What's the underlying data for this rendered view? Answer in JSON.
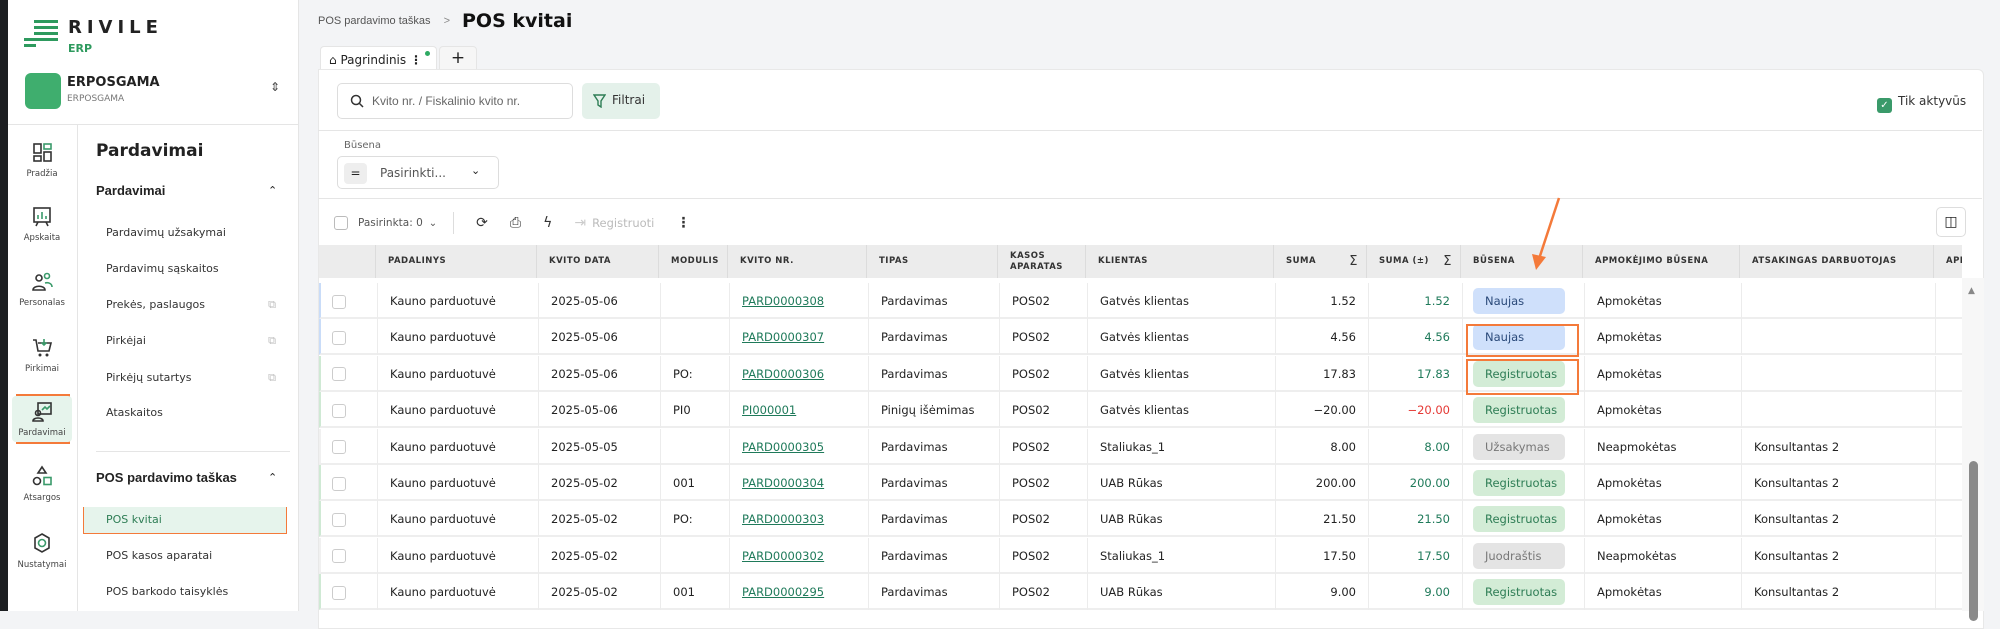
{
  "app": {
    "logo": "RIVILE",
    "logo_sub": "ERP",
    "company_name": "ERPOSGAMA",
    "company_sub": "ERPOSGAMA"
  },
  "rail": [
    {
      "label": "Pradžia",
      "icon": "dashboard-icon"
    },
    {
      "label": "Apskaita",
      "icon": "chart-board-icon"
    },
    {
      "label": "Personalas",
      "icon": "people-icon"
    },
    {
      "label": "Pirkimai",
      "icon": "cart-icon"
    },
    {
      "label": "Pardavimai",
      "icon": "sales-icon",
      "active": true
    },
    {
      "label": "Atsargos",
      "icon": "shapes-icon"
    },
    {
      "label": "Nustatymai",
      "icon": "gear-icon"
    }
  ],
  "panel": {
    "title": "Pardavimai",
    "sections": [
      {
        "title": "Pardavimai",
        "items": [
          {
            "label": "Pardavimų užsakymai"
          },
          {
            "label": "Pardavimų sąskaitos"
          },
          {
            "label": "Prekės, paslaugos",
            "external": true
          },
          {
            "label": "Pirkėjai",
            "external": true
          },
          {
            "label": "Pirkėjų sutartys",
            "external": true
          },
          {
            "label": "Ataskaitos"
          }
        ]
      },
      {
        "title": "POS pardavimo taškas",
        "items": [
          {
            "label": "POS kvitai",
            "active": true
          },
          {
            "label": "POS kasos aparatai"
          },
          {
            "label": "POS barkodo taisyklės"
          }
        ]
      }
    ]
  },
  "header": {
    "breadcrumb": "POS pardavimo taškas",
    "separator": ">",
    "title": "POS kvitai"
  },
  "tabs": {
    "home": "Pagrindinis",
    "add": "+"
  },
  "filters": {
    "search_placeholder": "Kvito nr. / Fiskalinio kvito nr.",
    "filter_button": "Filtrai",
    "only_active": "Tik aktyvūs",
    "only_active_checked": true,
    "status_label": "Būsena",
    "status_value": "Pasirinkti..."
  },
  "toolbar": {
    "selected": "Pasirinkta: 0",
    "register": "Registruoti"
  },
  "table": {
    "columns": [
      "",
      "PADALINYS",
      "KVITO DATA",
      "MODULIS",
      "KVITO NR.",
      "TIPAS",
      "KASOS APARATAS",
      "KLIENTAS",
      "SUMA",
      "SUMA (±)",
      "BŪSENA",
      "APMOKĖJIMO BŪSENA",
      "ATSAKINGAS DARBUOTOJAS",
      "APMOKĖJIMO"
    ],
    "rows": [
      [
        "Kauno parduotuvė",
        "2025-05-06",
        "",
        "PARD0000308",
        "Pardavimas",
        "POS02",
        "Gatvės klientas",
        "1.52",
        "1.52",
        "Naujas",
        "Apmokėtas",
        ""
      ],
      [
        "Kauno parduotuvė",
        "2025-05-06",
        "",
        "PARD0000307",
        "Pardavimas",
        "POS02",
        "Gatvės klientas",
        "4.56",
        "4.56",
        "Naujas",
        "Apmokėtas",
        ""
      ],
      [
        "Kauno parduotuvė",
        "2025-05-06",
        "PO:",
        "PARD0000306",
        "Pardavimas",
        "POS02",
        "Gatvės klientas",
        "17.83",
        "17.83",
        "Registruotas",
        "Apmokėtas",
        ""
      ],
      [
        "Kauno parduotuvė",
        "2025-05-06",
        "PI0",
        "PI000001",
        "Pinigų išėmimas",
        "POS02",
        "Gatvės klientas",
        "−20.00",
        "−20.00",
        "Registruotas",
        "Apmokėtas",
        ""
      ],
      [
        "Kauno parduotuvė",
        "2025-05-05",
        "",
        "PARD0000305",
        "Pardavimas",
        "POS02",
        "Staliukas_1",
        "8.00",
        "8.00",
        "Užsakymas",
        "Neapmokėtas",
        "Konsultantas 2"
      ],
      [
        "Kauno parduotuvė",
        "2025-05-02",
        "001",
        "PARD0000304",
        "Pardavimas",
        "POS02",
        "UAB Rūkas",
        "200.00",
        "200.00",
        "Registruotas",
        "Apmokėtas",
        "Konsultantas 2"
      ],
      [
        "Kauno parduotuvė",
        "2025-05-02",
        "PO:",
        "PARD0000303",
        "Pardavimas",
        "POS02",
        "UAB Rūkas",
        "21.50",
        "21.50",
        "Registruotas",
        "Apmokėtas",
        "Konsultantas 2"
      ],
      [
        "Kauno parduotuvė",
        "2025-05-02",
        "",
        "PARD0000302",
        "Pardavimas",
        "POS02",
        "Staliukas_1",
        "17.50",
        "17.50",
        "Juodraštis",
        "Neapmokėtas",
        "Konsultantas 2"
      ],
      [
        "Kauno parduotuvė",
        "2025-05-02",
        "001",
        "PARD0000295",
        "Pardavimas",
        "POS02",
        "UAB Rūkas",
        "9.00",
        "9.00",
        "Registruotas",
        "Apmokėtas",
        "Konsultantas 2"
      ]
    ]
  },
  "colors": {
    "accent": "#2e9a5e",
    "link": "#1f7a5a",
    "negative": "#e53935",
    "annotation": "#f47a3a",
    "status": {
      "Naujas": {
        "bg": "#cfe0fb",
        "fg": "#2b4a7a"
      },
      "Registruotas": {
        "bg": "#d3ecd6",
        "fg": "#2e7d55"
      },
      "Užsakymas": {
        "bg": "#e4e4e4",
        "fg": "#777777"
      },
      "Juodraštis": {
        "bg": "#e4e4e4",
        "fg": "#777777"
      }
    }
  }
}
